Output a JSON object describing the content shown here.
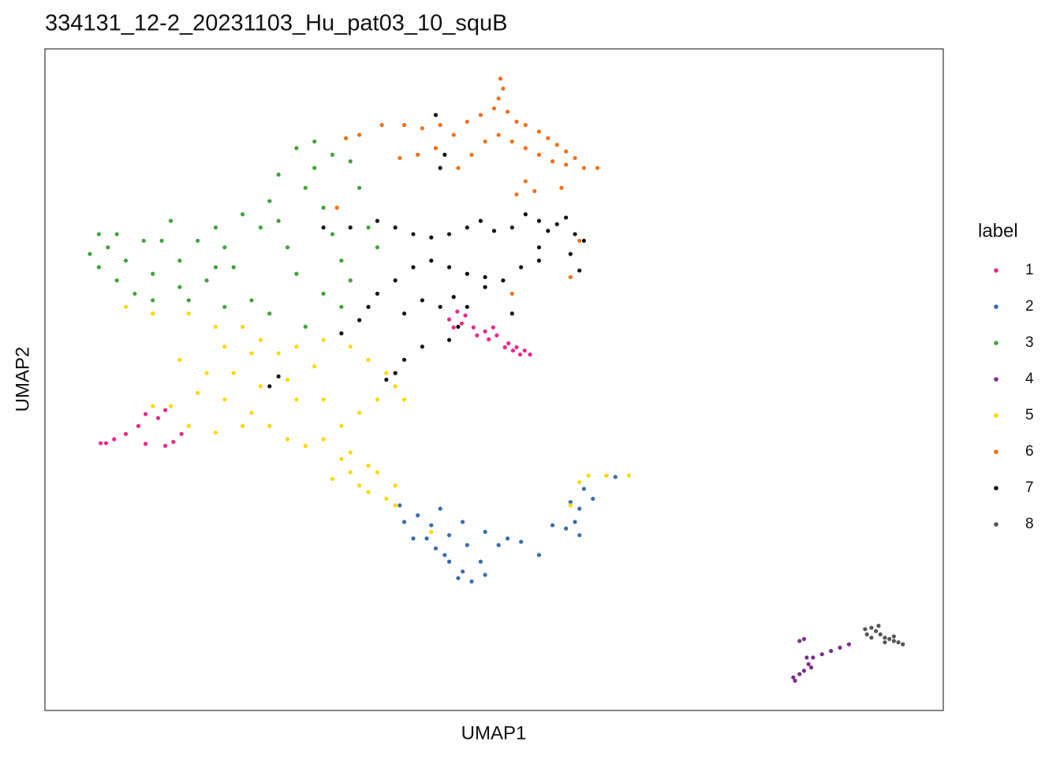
{
  "chart_data": {
    "type": "scatter",
    "title": "334131_12-2_20231103_Hu_pat03_10_squB",
    "x_label": "UMAP1",
    "y_label": "UMAP2",
    "legend_title": "label",
    "legend": "right",
    "xlim": [
      0,
      100
    ],
    "ylim": [
      0,
      100
    ],
    "series": [
      {
        "name": "1",
        "color": "#e7298a",
        "x": [
          45.0,
          46.4,
          47.7,
          49.0,
          50.3,
          51.6,
          52.5,
          53.4,
          54.0,
          52.9,
          52.1,
          51.2,
          49.4,
          48.1,
          46.8,
          45.9,
          45.5,
          49.9,
          6.8,
          6.2,
          7.7,
          9.0,
          10.4,
          11.2,
          12.6,
          13.4,
          14.3,
          11.2,
          15.2,
          13.4
        ],
        "y": [
          59.1,
          58.5,
          57.9,
          57.3,
          56.7,
          55.5,
          54.9,
          54.4,
          53.8,
          53.8,
          54.4,
          54.9,
          56.1,
          56.7,
          59.7,
          60.3,
          57.9,
          57.9,
          40.4,
          40.4,
          41.0,
          41.8,
          43.0,
          44.8,
          44.2,
          40.0,
          40.6,
          40.3,
          41.8,
          45.4
        ]
      },
      {
        "name": "2",
        "color": "#386cb0",
        "x": [
          39.5,
          41.5,
          43.0,
          45.0,
          47.0,
          48.5,
          46.5,
          45.0,
          43.5,
          41.0,
          40.0,
          44.0,
          46.5,
          49.0,
          50.5,
          49.0,
          47.5,
          46.0,
          44.5,
          42.5,
          51.5,
          53.0,
          55.0,
          56.5,
          58.0,
          59.0,
          59.5,
          58.5,
          60.0,
          63.5,
          61.0,
          59.5
        ],
        "y": [
          31.0,
          29.5,
          28.0,
          26.5,
          25.0,
          22.5,
          21.0,
          22.5,
          24.5,
          26.0,
          28.5,
          30.5,
          28.5,
          27.0,
          25.0,
          20.5,
          19.5,
          20.0,
          23.5,
          26.0,
          26.0,
          25.5,
          23.5,
          28.0,
          27.5,
          28.5,
          30.5,
          31.5,
          33.5,
          35.3,
          32.0,
          26.5
        ]
      },
      {
        "name": "3",
        "color": "#3fa33a",
        "x": [
          5,
          6,
          7,
          8,
          10,
          12,
          13,
          15,
          16,
          18,
          20,
          21,
          23,
          24,
          25,
          26,
          27,
          28,
          29,
          30,
          31,
          32,
          33,
          34,
          22,
          19,
          17,
          14,
          11,
          9,
          26,
          28,
          30,
          32,
          34,
          35,
          36,
          37,
          31,
          25,
          20,
          15,
          8,
          6,
          33,
          29,
          12,
          19
        ],
        "y": [
          69,
          67,
          70,
          65,
          63,
          66,
          71,
          68,
          62,
          65,
          70,
          67,
          62,
          73,
          77,
          74,
          70,
          66,
          79,
          82,
          76,
          72,
          68,
          65,
          75,
          73,
          71,
          74,
          71,
          68,
          81,
          85,
          86,
          84,
          83,
          79,
          73,
          70,
          63,
          60,
          61,
          64,
          72,
          72,
          61,
          58,
          62,
          67
        ]
      },
      {
        "name": "4",
        "color": "#7b2f8c",
        "x": [
          83.5,
          84.0,
          84.5,
          85.0,
          85.5,
          86.5,
          87.5,
          88.5,
          89.5,
          84.0,
          84.5,
          83.3,
          85.3,
          84.8
        ],
        "y": [
          4.5,
          5.5,
          6.0,
          7.0,
          8.0,
          8.5,
          9.0,
          9.5,
          10.0,
          10.5,
          10.8,
          5.0,
          6.5,
          8.0
        ]
      },
      {
        "name": "5",
        "color": "#ffd700",
        "x": [
          9,
          12,
          16,
          19,
          22,
          24,
          26,
          28,
          31,
          34,
          36,
          38,
          39,
          40,
          37,
          35,
          33,
          31,
          29,
          27,
          25,
          23,
          20,
          17,
          14,
          12,
          16,
          19,
          22,
          24,
          21,
          18,
          28,
          31,
          33,
          34,
          35,
          36,
          38,
          39,
          37,
          34,
          32,
          39,
          36,
          30,
          27,
          23,
          20,
          15,
          43,
          58.5,
          59.5,
          60.5,
          62.5,
          65
        ],
        "y": [
          61,
          60,
          60,
          58,
          58,
          56,
          54,
          55,
          56,
          55,
          53,
          51,
          49,
          47,
          47,
          45,
          43,
          41,
          40,
          41,
          43,
          45,
          47,
          48,
          46,
          46,
          43,
          42,
          43,
          49,
          51,
          51,
          47,
          47,
          38,
          36,
          34,
          33,
          32,
          31,
          36,
          39,
          35,
          34,
          37,
          52,
          50,
          54,
          55,
          53,
          27,
          31,
          34.5,
          35.5,
          35.5,
          35.5
        ]
      },
      {
        "name": "6",
        "color": "#f07018",
        "x": [
          37.5,
          40,
          42,
          44,
          45.5,
          47,
          48.5,
          50,
          50.5,
          51,
          50.7,
          51.5,
          52.5,
          53.5,
          55,
          56,
          57,
          58,
          59,
          60,
          61.5,
          58,
          56.5,
          55,
          53.5,
          52,
          50.5,
          49,
          47.5,
          46,
          43.5,
          41.5,
          39.5,
          53.5,
          54.5,
          52.5,
          57.5,
          33.5,
          35,
          32.5,
          59.5,
          58.5,
          49,
          52
        ],
        "y": [
          88.5,
          88.5,
          88,
          88.5,
          87,
          89,
          90,
          91,
          92.5,
          94,
          95.5,
          90.5,
          89,
          88.5,
          87.5,
          86.5,
          85.5,
          84.5,
          83.5,
          82,
          82,
          82.5,
          83,
          84,
          85,
          86,
          87,
          86,
          84,
          82,
          85,
          84,
          83.5,
          80,
          78.5,
          78,
          79,
          86.5,
          87,
          76,
          71,
          65.5,
          64,
          63
        ]
      },
      {
        "name": "7",
        "color": "#111111",
        "x": [
          31,
          34,
          37,
          39,
          41,
          43,
          45,
          47,
          48.5,
          50,
          52,
          53.5,
          55,
          56,
          57,
          58,
          59,
          60,
          58.5,
          59.5,
          55,
          53,
          51,
          49,
          47,
          45,
          43,
          41,
          39,
          37,
          36,
          35,
          40,
          42,
          44,
          45.5,
          47,
          46,
          45,
          42,
          40,
          39,
          38,
          26,
          25,
          43.5,
          44,
          44.5,
          49,
          33,
          52,
          55
        ],
        "y": [
          73,
          73,
          74,
          73,
          72,
          71.5,
          72,
          73,
          74,
          72.5,
          73,
          75,
          74,
          72.5,
          73.5,
          74.5,
          72,
          71,
          69,
          66.5,
          68,
          67,
          65,
          64,
          66,
          67,
          68,
          67,
          65,
          63,
          61,
          59,
          60,
          62,
          61,
          62.5,
          61,
          58,
          56,
          55,
          53,
          51,
          50,
          50.5,
          49,
          90,
          82,
          84,
          65.5,
          57,
          60,
          70
        ]
      },
      {
        "name": "8",
        "color": "#555555",
        "x": [
          91.3,
          92.0,
          92.5,
          93.0,
          93.5,
          94.0,
          94.5,
          95.0,
          95.5,
          92.0,
          91.5,
          93.5,
          94.5,
          92.8
        ],
        "y": [
          12.3,
          12.5,
          12.0,
          11.5,
          11.0,
          10.8,
          10.5,
          10.3,
          10.0,
          11.0,
          11.5,
          10.3,
          11.2,
          12.8
        ]
      }
    ]
  }
}
